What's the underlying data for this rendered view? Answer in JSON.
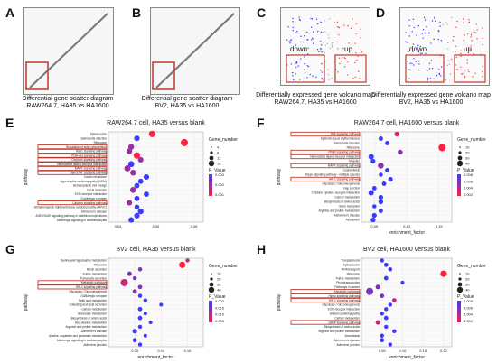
{
  "colors": {
    "highlight": "#c0392b",
    "low": "#3b3bff",
    "high": "#ff2040",
    "dot": "#8b1a1a",
    "grid": "#e5e5e5"
  },
  "top": {
    "A": {
      "letter": "A",
      "caption1": "Differential gene scatter diagram",
      "caption2": "RAW264.7, HA35 vs HA1600"
    },
    "B": {
      "letter": "B",
      "caption1": "Differential gene scatter diagram",
      "caption2": "BV2, HA35 vs HA1600"
    },
    "C": {
      "letter": "C",
      "caption1": "Differentially expressed gene volcano map",
      "caption2": "RAW264.7, HA35 vs HA1600",
      "down": "down",
      "up": "up"
    },
    "D": {
      "letter": "D",
      "caption1": "Differentially expressed gene volcano map",
      "caption2": "BV2, HA35 vs HA1600",
      "down": "down",
      "up": "up"
    }
  },
  "chart_data": [
    {
      "id": "E",
      "type": "scatter",
      "title": "RAW264.7 cell, HA35 versus blank",
      "xlabel": "",
      "ylabel": "pathway",
      "categories": [
        "Spliceosome",
        "Salmonella infection",
        "Ribosome",
        "Regulation of actin cytoskeleton",
        "Rap1 signaling pathway",
        "PI3K-Akt signaling pathway",
        "Oxytocin signaling pathway",
        "Neuroactive ligand-receptor interaction",
        "MAPK signaling pathway",
        "Jak-STAT signaling pathway",
        "Insulin resistance",
        "Hypertrophic cardiomyopathy (HCM)",
        "Hematopoietic cell lineage",
        "Focal adhesion",
        "ECM-receptor interaction",
        "Cholinergic synapse",
        "Calcium signaling pathway",
        "Arrhythmogenic right ventricular cardiomyopathy (ARVC)",
        "Alzheimer's disease",
        "AGE-RAGE signaling pathway in diabetic complications",
        "Adrenergic signaling in cardiomyocytes"
      ],
      "x": [
        0.058,
        0.05,
        0.075,
        0.047,
        0.046,
        0.05,
        0.052,
        0.047,
        0.045,
        0.048,
        0.055,
        0.052,
        0.05,
        0.048,
        0.055,
        0.05,
        0.046,
        0.05,
        0.052,
        0.05,
        0.047
      ],
      "xticks": [
        0.04,
        0.06,
        0.08
      ],
      "xlim": [
        0.035,
        0.085
      ],
      "sizes": [
        12,
        8,
        16,
        9,
        9,
        12,
        8,
        10,
        11,
        9,
        8,
        7,
        7,
        10,
        7,
        7,
        8,
        6,
        9,
        8,
        8
      ],
      "pvalue": [
        0.001,
        0.003,
        0.001,
        0.002,
        0.002,
        0.001,
        0.002,
        0.003,
        0.002,
        0.002,
        0.003,
        0.003,
        0.003,
        0.002,
        0.003,
        0.003,
        0.002,
        0.003,
        0.003,
        0.003,
        0.003
      ],
      "highlighted": [
        "Regulation of actin cytoskeleton",
        "Rap1 signaling pathway",
        "PI3K-Akt signaling pathway",
        "Oxytocin signaling pathway",
        "Neuroactive ligand-receptor interaction",
        "MAPK signaling pathway",
        "Jak-STAT signaling pathway",
        "Calcium signaling pathway"
      ],
      "legend": {
        "p_title": "P_Value",
        "p_ticks": [
          "0.003",
          "0.002",
          "0.001"
        ],
        "g_title": "Gene_number",
        "g_ticks": [
          "4",
          "8",
          "12",
          "16"
        ]
      }
    },
    {
      "id": "F",
      "type": "scatter",
      "title": "RAW264.7 cell, HA1600 versus blank",
      "xlabel": "enrichment_factor",
      "ylabel": "pathway",
      "categories": [
        "TNF signaling pathway",
        "Systemic lupus erythematosus",
        "Salmonella infection",
        "Ribosome",
        "PPAR signaling pathway",
        "Neuroactive ligand-receptor interaction",
        "Measles",
        "MAPK signaling pathway",
        "Legionellosis",
        "Hippo signaling pathway - multiple species",
        "HIF-1 signaling pathway",
        "Glycolysis / Gluconeogenesis",
        "Gap junction",
        "Cytokine-cytokine receptor interaction",
        "Carbon metabolism",
        "Biosynthesis of amino acids",
        "Bone resorption",
        "Arginine and proline metabolism",
        "Alzheimer's disease",
        "Alcoholism"
      ],
      "x": [
        0.085,
        0.06,
        0.07,
        0.155,
        0.09,
        0.045,
        0.048,
        0.06,
        0.07,
        0.06,
        0.075,
        0.065,
        0.05,
        0.045,
        0.06,
        0.06,
        0.05,
        0.06,
        0.05,
        0.048
      ],
      "xticks": [
        0.05,
        0.1,
        0.15
      ],
      "xlim": [
        0.03,
        0.17
      ],
      "sizes": [
        14,
        10,
        10,
        38,
        14,
        18,
        12,
        22,
        10,
        8,
        12,
        10,
        10,
        18,
        12,
        12,
        8,
        10,
        12,
        14
      ],
      "pvalue": [
        0.002,
        0.006,
        0.006,
        0.001,
        0.004,
        0.006,
        0.006,
        0.004,
        0.006,
        0.006,
        0.006,
        0.006,
        0.006,
        0.006,
        0.006,
        0.006,
        0.006,
        0.006,
        0.006,
        0.006
      ],
      "highlighted": [
        "TNF signaling pathway",
        "PPAR signaling pathway",
        "Neuroactive ligand-receptor interaction",
        "MAPK signaling pathway",
        "HIF-1 signaling pathway"
      ],
      "legend": {
        "p_title": "P_Value",
        "p_ticks": [
          "0.008",
          "0.006",
          "0.004",
          "0.002"
        ],
        "g_title": "Gene_number",
        "g_ticks": [
          "10",
          "20",
          "30",
          "40"
        ]
      }
    },
    {
      "id": "G",
      "type": "scatter",
      "title": "BV2 cell, HA35 versus blank",
      "xlabel": "enrichment_factor",
      "ylabel": "pathway",
      "categories": [
        "Taurine and hypotaurine metabolism",
        "Ribosome",
        "Renin secretion",
        "Purine metabolism",
        "Pancreatic secretion",
        "Metabolic pathways",
        "HIF-1 signaling pathway",
        "Glycolysis / Gluconeogenesis",
        "GABAergic synapse",
        "Fatty acid metabolism",
        "Collecting duct acid secretion",
        "Carbon metabolism",
        "Butanoate metabolism",
        "Biosynthesis of amino acids",
        "beta-Alanine metabolism",
        "Arginine and proline metabolism",
        "Alzheimer's disease",
        "Alanine, aspartate and glutamate metabolism",
        "Adrenergic signaling in cardiomyocytes",
        "Adherens junction"
      ],
      "x": [
        0.15,
        0.14,
        0.06,
        0.04,
        0.05,
        0.03,
        0.06,
        0.05,
        0.06,
        0.07,
        0.1,
        0.06,
        0.07,
        0.06,
        0.08,
        0.06,
        0.05,
        0.07,
        0.05,
        0.06
      ],
      "xticks": [
        0.05,
        0.1,
        0.15
      ],
      "xlim": [
        0.0,
        0.18
      ],
      "sizes": [
        8,
        30,
        8,
        12,
        8,
        40,
        10,
        10,
        8,
        8,
        6,
        10,
        6,
        10,
        6,
        8,
        12,
        6,
        10,
        8
      ],
      "pvalue": [
        0.005,
        0.001,
        0.01,
        0.01,
        0.01,
        0.005,
        0.01,
        0.01,
        0.015,
        0.015,
        0.015,
        0.015,
        0.015,
        0.015,
        0.015,
        0.015,
        0.015,
        0.015,
        0.015,
        0.015
      ],
      "highlighted": [
        "Metabolic pathways",
        "HIF-1 signaling pathway"
      ],
      "legend": {
        "p_title": "P_Value",
        "p_ticks": [
          "0.020",
          "0.015",
          "0.010",
          "0.005"
        ],
        "g_title": "Gene_number",
        "g_ticks": [
          "10",
          "20",
          "30",
          "40"
        ]
      }
    },
    {
      "id": "H",
      "type": "scatter",
      "title": "BV2 cell, HA1600 versus blank",
      "xlabel": "enrichment_factor",
      "ylabel": "pathway",
      "categories": [
        "Toxoplasmosis",
        "Spliceosome",
        "RNA transport",
        "Ribosome",
        "Purine metabolism",
        "Phototransduction",
        "Pathways in cancer",
        "Metabolic pathways",
        "Hippo signaling pathway",
        "HIF-1 signaling pathway",
        "Glycolysis / Gluconeogenesis",
        "ECM-receptor interaction",
        "Dilated cardiomyopathy",
        "Carbon metabolism",
        "cAMP signaling pathway",
        "Biosynthesis of amino acids",
        "Arginine and proline metabolism",
        "Amoebiasis",
        "Alzheimer's disease",
        "Adherens junction"
      ],
      "x": [
        0.05,
        0.06,
        0.07,
        0.2,
        0.06,
        0.1,
        0.04,
        0.02,
        0.05,
        0.08,
        0.07,
        0.06,
        0.05,
        0.06,
        0.04,
        0.06,
        0.08,
        0.05,
        0.05,
        0.07
      ],
      "xticks": [
        0.05,
        0.1,
        0.15,
        0.2
      ],
      "xlim": [
        0.0,
        0.22
      ],
      "sizes": [
        8,
        10,
        8,
        30,
        10,
        6,
        12,
        40,
        10,
        10,
        8,
        8,
        8,
        10,
        12,
        8,
        8,
        8,
        10,
        8
      ],
      "pvalue": [
        0.008,
        0.008,
        0.008,
        0.002,
        0.008,
        0.008,
        0.006,
        0.006,
        0.006,
        0.004,
        0.008,
        0.008,
        0.008,
        0.008,
        0.004,
        0.008,
        0.008,
        0.008,
        0.008,
        0.008
      ],
      "highlighted": [
        "Metabolic pathways",
        "Hippo signaling pathway",
        "HIF-1 signaling pathway",
        "cAMP signaling pathway"
      ],
      "legend": {
        "p_title": "P_Value",
        "p_ticks": [
          "0.008",
          "0.006",
          "0.004",
          "0.002"
        ],
        "g_title": "Gene_number",
        "g_ticks": [
          "10",
          "20",
          "30",
          "40"
        ]
      }
    }
  ]
}
